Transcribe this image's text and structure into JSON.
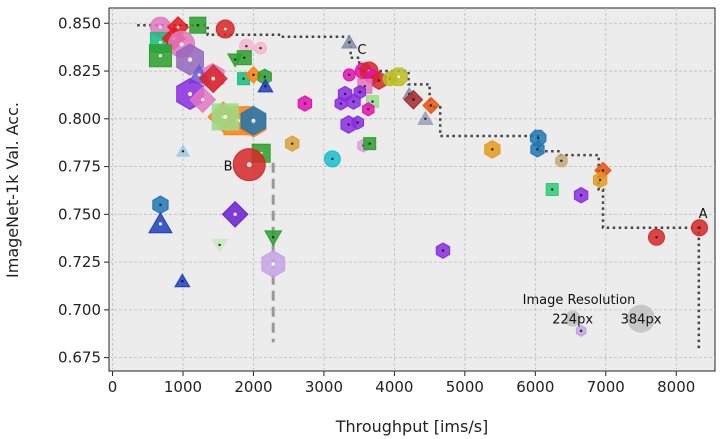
{
  "chart_data": {
    "type": "scatter",
    "title": "",
    "xlabel": "Throughput [ims/s]",
    "ylabel": "ImageNet-1k Val. Acc.",
    "xlim": [
      -50,
      8550
    ],
    "ylim": [
      0.668,
      0.858
    ],
    "xticks": [
      0,
      1000,
      2000,
      3000,
      4000,
      5000,
      6000,
      7000,
      8000
    ],
    "yticks": [
      0.675,
      0.7,
      0.725,
      0.75,
      0.775,
      0.8,
      0.825,
      0.85
    ],
    "xtick_labels": [
      "0",
      "1000",
      "2000",
      "3000",
      "4000",
      "5000",
      "6000",
      "7000",
      "8000"
    ],
    "ytick_labels": [
      "0.675",
      "0.700",
      "0.725",
      "0.750",
      "0.775",
      "0.800",
      "0.825",
      "0.850"
    ],
    "grid": true,
    "legend": {
      "title": "Image Resolution",
      "placement": "bottom-right",
      "entries": [
        {
          "label": "224px",
          "x": 6530,
          "y": 0.698,
          "size": 8
        },
        {
          "label": "384px",
          "x": 7500,
          "y": 0.698,
          "size": 14
        }
      ]
    },
    "annotations": [
      {
        "text": "A",
        "x": 8380,
        "y": 0.748
      },
      {
        "text": "B",
        "x": 1640,
        "y": 0.773
      },
      {
        "text": "C",
        "x": 3540,
        "y": 0.834
      }
    ],
    "pareto_frontier": [
      [
        350,
        0.849
      ],
      [
        1350,
        0.849
      ],
      [
        1350,
        0.844
      ],
      [
        2400,
        0.844
      ],
      [
        2400,
        0.843
      ],
      [
        3380,
        0.843
      ],
      [
        3380,
        0.832
      ],
      [
        3500,
        0.832
      ],
      [
        3500,
        0.825
      ],
      [
        4200,
        0.825
      ],
      [
        4200,
        0.818
      ],
      [
        4500,
        0.818
      ],
      [
        4500,
        0.806
      ],
      [
        4650,
        0.806
      ],
      [
        4650,
        0.791
      ],
      [
        6050,
        0.791
      ],
      [
        6050,
        0.783
      ],
      [
        6350,
        0.783
      ],
      [
        6350,
        0.781
      ],
      [
        6900,
        0.781
      ],
      [
        6900,
        0.763
      ],
      [
        6960,
        0.763
      ],
      [
        6960,
        0.743
      ],
      [
        8320,
        0.743
      ],
      [
        8320,
        0.68
      ]
    ],
    "b_dashed_line": [
      [
        2280,
        0.777
      ],
      [
        2280,
        0.683
      ]
    ],
    "points": [
      {
        "x": 680,
        "y": 0.848,
        "shape": "circle",
        "color": "#e377c2",
        "size": 10
      },
      {
        "x": 930,
        "y": 0.848,
        "shape": "diamond",
        "color": "#e41a1c",
        "size": 9
      },
      {
        "x": 1210,
        "y": 0.849,
        "shape": "square",
        "color": "#2ca02c",
        "size": 8
      },
      {
        "x": 1600,
        "y": 0.847,
        "shape": "circle",
        "color": "#d62728",
        "size": 9
      },
      {
        "x": 680,
        "y": 0.84,
        "shape": "square",
        "color": "#17be7f",
        "size": 10
      },
      {
        "x": 870,
        "y": 0.842,
        "shape": "diamond",
        "color": "#e41a1c",
        "size": 10
      },
      {
        "x": 980,
        "y": 0.839,
        "shape": "circle",
        "color": "#e377c2",
        "size": 13
      },
      {
        "x": 680,
        "y": 0.833,
        "shape": "square",
        "color": "#2ca02c",
        "size": 11
      },
      {
        "x": 1100,
        "y": 0.831,
        "shape": "hexagon",
        "color": "#9467bd",
        "size": 14
      },
      {
        "x": 1900,
        "y": 0.838,
        "shape": "circle",
        "color": "#f7b6d2",
        "size": 7
      },
      {
        "x": 2100,
        "y": 0.837,
        "shape": "circle",
        "color": "#f7b6d2",
        "size": 6
      },
      {
        "x": 1740,
        "y": 0.831,
        "shape": "triangle_down",
        "color": "#2ca02c",
        "size": 7
      },
      {
        "x": 1870,
        "y": 0.832,
        "shape": "square",
        "color": "#2ca02c",
        "size": 7
      },
      {
        "x": 1860,
        "y": 0.821,
        "shape": "square",
        "color": "#17be7f",
        "size": 6
      },
      {
        "x": 1420,
        "y": 0.822,
        "shape": "hexagon",
        "color": "#e377c2",
        "size": 12
      },
      {
        "x": 1230,
        "y": 0.823,
        "shape": "triangle_up",
        "color": "#6b5bd3",
        "size": 10
      },
      {
        "x": 1430,
        "y": 0.821,
        "shape": "diamond",
        "color": "#d62728",
        "size": 12
      },
      {
        "x": 2000,
        "y": 0.823,
        "shape": "diamond",
        "color": "#ff7f0e",
        "size": 7
      },
      {
        "x": 2160,
        "y": 0.822,
        "shape": "hexagon",
        "color": "#2ca02c",
        "size": 7
      },
      {
        "x": 2170,
        "y": 0.817,
        "shape": "triangle_up",
        "color": "#1f3fbf",
        "size": 7
      },
      {
        "x": 1100,
        "y": 0.813,
        "shape": "hexagon",
        "color": "#8a2be2",
        "size": 14
      },
      {
        "x": 1280,
        "y": 0.81,
        "shape": "diamond",
        "color": "#e377c2",
        "size": 11
      },
      {
        "x": 1570,
        "y": 0.801,
        "shape": "diamond",
        "color": "#ff7f0e",
        "size": 13
      },
      {
        "x": 1780,
        "y": 0.799,
        "shape": "square",
        "color": "#ff7f0e",
        "size": 14
      },
      {
        "x": 2000,
        "y": 0.798,
        "shape": "hexagon",
        "color": "#ff7f0e",
        "size": 13
      },
      {
        "x": 2000,
        "y": 0.799,
        "shape": "hexagon",
        "color": "#1f77b4",
        "size": 13
      },
      {
        "x": 1600,
        "y": 0.801,
        "shape": "square",
        "color": "#98df8a",
        "size": 13
      },
      {
        "x": 1000,
        "y": 0.783,
        "shape": "triangle_up",
        "color": "#9ecae1",
        "size": 6
      },
      {
        "x": 2550,
        "y": 0.787,
        "shape": "hexagon",
        "color": "#dba13b",
        "size": 7
      },
      {
        "x": 2110,
        "y": 0.782,
        "shape": "square",
        "color": "#2ca02c",
        "size": 9
      },
      {
        "x": 1940,
        "y": 0.776,
        "shape": "circle",
        "color": "#d62728",
        "size": 16
      },
      {
        "x": 2730,
        "y": 0.808,
        "shape": "hexagon",
        "color": "#e40fb3",
        "size": 7
      },
      {
        "x": 3120,
        "y": 0.779,
        "shape": "circle",
        "color": "#17becf",
        "size": 8
      },
      {
        "x": 3360,
        "y": 0.84,
        "shape": "triangle_up",
        "color": "#7f8fa6",
        "size": 7
      },
      {
        "x": 3360,
        "y": 0.823,
        "shape": "circle",
        "color": "#e40fb3",
        "size": 6
      },
      {
        "x": 3560,
        "y": 0.825,
        "shape": "circle",
        "color": "#e40fb3",
        "size": 8
      },
      {
        "x": 3640,
        "y": 0.825,
        "shape": "circle",
        "color": "#d62728",
        "size": 9
      },
      {
        "x": 3690,
        "y": 0.822,
        "shape": "hexagon",
        "color": "#e40fb3",
        "size": 7
      },
      {
        "x": 3780,
        "y": 0.82,
        "shape": "hexagon",
        "color": "#d62728",
        "size": 8
      },
      {
        "x": 3940,
        "y": 0.821,
        "shape": "circle",
        "color": "#bcbd22",
        "size": 7
      },
      {
        "x": 4060,
        "y": 0.822,
        "shape": "octagon",
        "color": "#bcbd22",
        "size": 9
      },
      {
        "x": 3580,
        "y": 0.817,
        "shape": "square",
        "color": "#e377c2",
        "size": 7
      },
      {
        "x": 3690,
        "y": 0.809,
        "shape": "square",
        "color": "#98df8a",
        "size": 6
      },
      {
        "x": 3300,
        "y": 0.813,
        "shape": "hexagon",
        "color": "#8a2be2",
        "size": 7
      },
      {
        "x": 3420,
        "y": 0.809,
        "shape": "hexagon",
        "color": "#8a2be2",
        "size": 7
      },
      {
        "x": 3510,
        "y": 0.814,
        "shape": "hexagon",
        "color": "#8a2be2",
        "size": 6
      },
      {
        "x": 3240,
        "y": 0.808,
        "shape": "hexagon",
        "color": "#8a2be2",
        "size": 6
      },
      {
        "x": 3630,
        "y": 0.805,
        "shape": "hexagon",
        "color": "#e40fb3",
        "size": 6
      },
      {
        "x": 3480,
        "y": 0.798,
        "shape": "hexagon",
        "color": "#8a2be2",
        "size": 6
      },
      {
        "x": 3350,
        "y": 0.797,
        "shape": "hexagon",
        "color": "#8a2be2",
        "size": 8
      },
      {
        "x": 3560,
        "y": 0.786,
        "shape": "hexagon",
        "color": "#dda0dd",
        "size": 6
      },
      {
        "x": 3650,
        "y": 0.787,
        "shape": "square",
        "color": "#2ca02c",
        "size": 6
      },
      {
        "x": 4210,
        "y": 0.813,
        "shape": "triangle_up",
        "color": "#7f8fa6",
        "size": 6
      },
      {
        "x": 4270,
        "y": 0.81,
        "shape": "diamond",
        "color": "#a52a2a",
        "size": 8
      },
      {
        "x": 4520,
        "y": 0.807,
        "shape": "diamond",
        "color": "#e6550d",
        "size": 7
      },
      {
        "x": 4440,
        "y": 0.8,
        "shape": "triangle_up",
        "color": "#9aa0b8",
        "size": 7
      },
      {
        "x": 5390,
        "y": 0.784,
        "shape": "hexagon",
        "color": "#e69a1a",
        "size": 8
      },
      {
        "x": 6040,
        "y": 0.79,
        "shape": "octagon",
        "color": "#1f77b4",
        "size": 8
      },
      {
        "x": 6030,
        "y": 0.784,
        "shape": "hexagon",
        "color": "#1f77b4",
        "size": 7
      },
      {
        "x": 6370,
        "y": 0.778,
        "shape": "octagon",
        "color": "#c8a878",
        "size": 6
      },
      {
        "x": 6240,
        "y": 0.763,
        "shape": "square",
        "color": "#2ecc71",
        "size": 6
      },
      {
        "x": 6650,
        "y": 0.76,
        "shape": "hexagon",
        "color": "#8a2be2",
        "size": 7
      },
      {
        "x": 6960,
        "y": 0.773,
        "shape": "diamond",
        "color": "#e6550d",
        "size": 7
      },
      {
        "x": 6920,
        "y": 0.768,
        "shape": "hexagon",
        "color": "#e69a1a",
        "size": 7
      },
      {
        "x": 4690,
        "y": 0.731,
        "shape": "hexagon",
        "color": "#8a2be2",
        "size": 7
      },
      {
        "x": 7720,
        "y": 0.738,
        "shape": "circle",
        "color": "#d62728",
        "size": 8
      },
      {
        "x": 8330,
        "y": 0.743,
        "shape": "circle",
        "color": "#d62728",
        "size": 8
      },
      {
        "x": 680,
        "y": 0.755,
        "shape": "hexagon",
        "color": "#1f77b4",
        "size": 8
      },
      {
        "x": 680,
        "y": 0.745,
        "shape": "triangle_up",
        "color": "#1f3fbf",
        "size": 11
      },
      {
        "x": 1740,
        "y": 0.75,
        "shape": "diamond",
        "color": "#6a1fd0",
        "size": 11
      },
      {
        "x": 1520,
        "y": 0.734,
        "shape": "triangle_down",
        "color": "#c7e9c0",
        "size": 7
      },
      {
        "x": 2280,
        "y": 0.738,
        "shape": "triangle_down",
        "color": "#2ca02c",
        "size": 8
      },
      {
        "x": 2280,
        "y": 0.724,
        "shape": "hexagon",
        "color": "#c6a2e6",
        "size": 12
      },
      {
        "x": 990,
        "y": 0.715,
        "shape": "triangle_up",
        "color": "#1f3fbf",
        "size": 7
      },
      {
        "x": 6650,
        "y": 0.689,
        "shape": "hexagon",
        "color": "#c6a2e6",
        "size": 5
      }
    ]
  }
}
